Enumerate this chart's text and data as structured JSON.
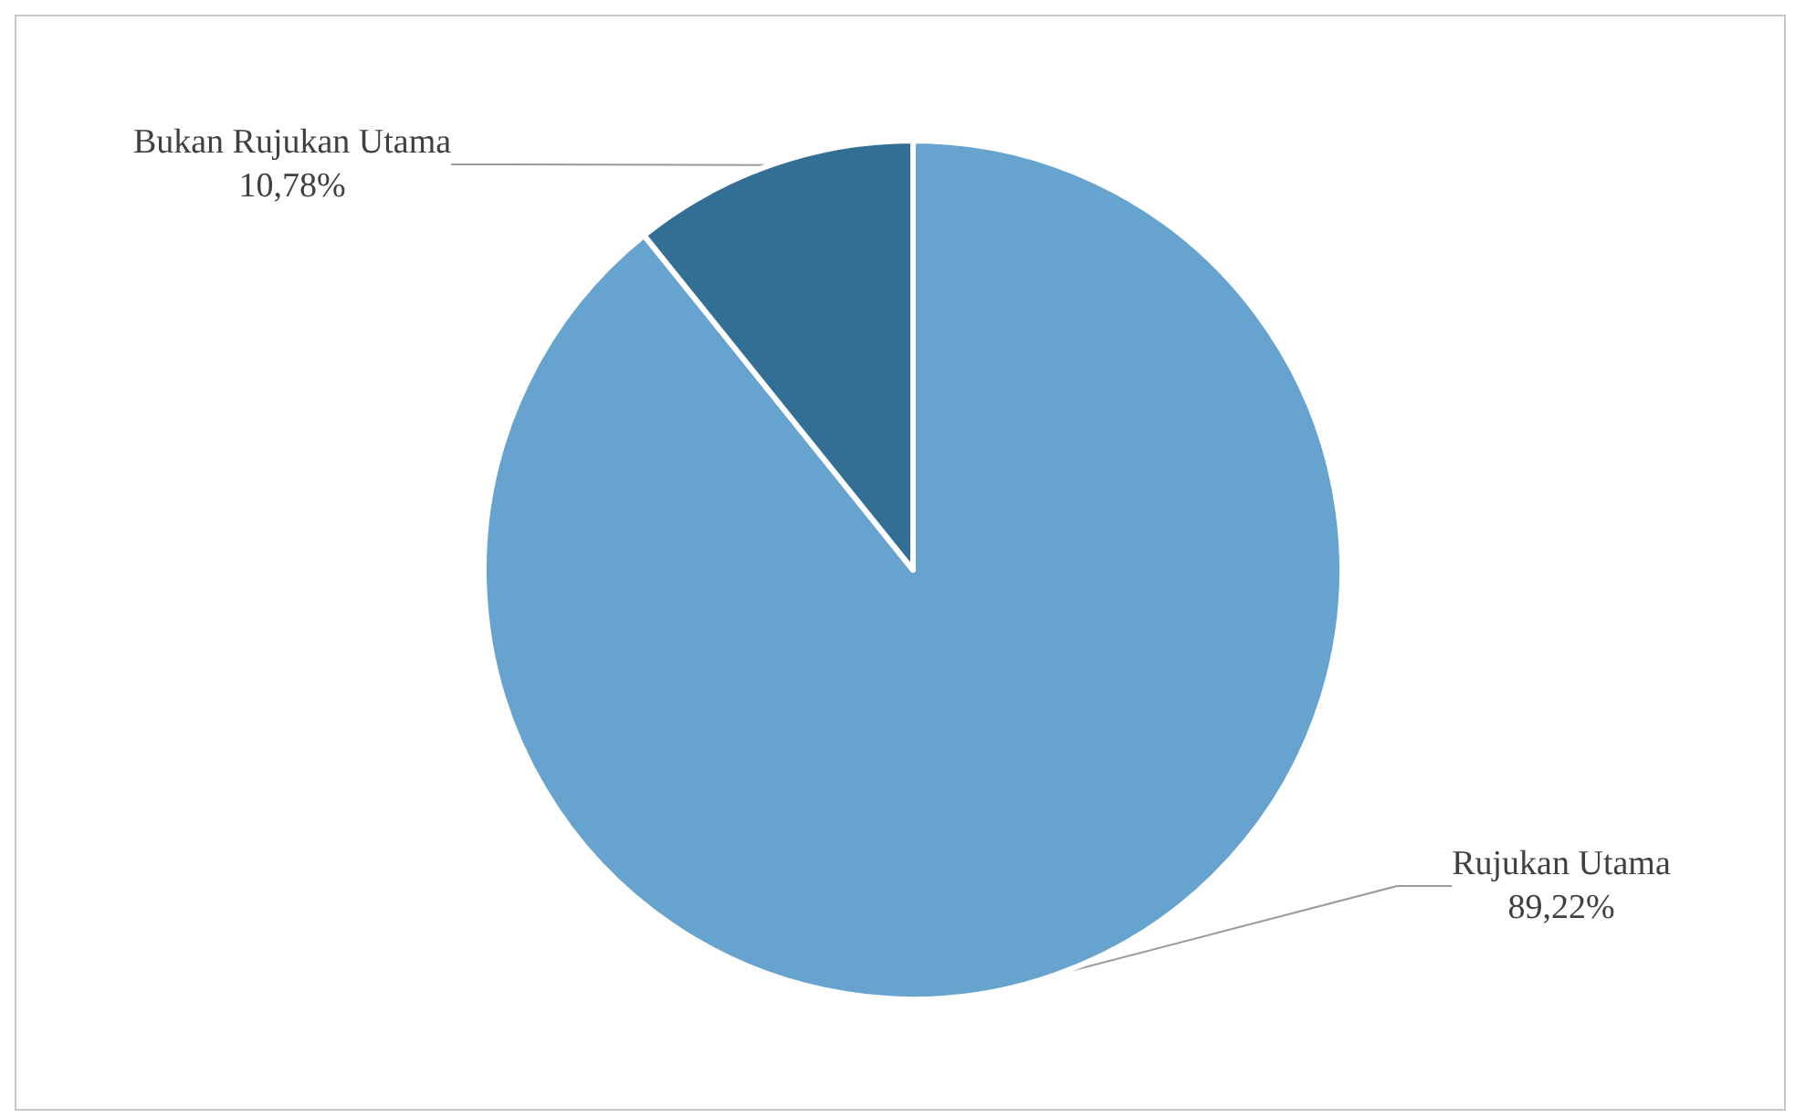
{
  "chart_data": {
    "type": "pie",
    "categories": [
      "Rujukan Utama",
      "Bukan Rujukan Utama"
    ],
    "values": [
      89.22,
      10.78
    ],
    "colors": [
      "#66a3cf",
      "#336e94"
    ],
    "value_labels": [
      "89,22%",
      "10,78%"
    ],
    "legend": false
  }
}
